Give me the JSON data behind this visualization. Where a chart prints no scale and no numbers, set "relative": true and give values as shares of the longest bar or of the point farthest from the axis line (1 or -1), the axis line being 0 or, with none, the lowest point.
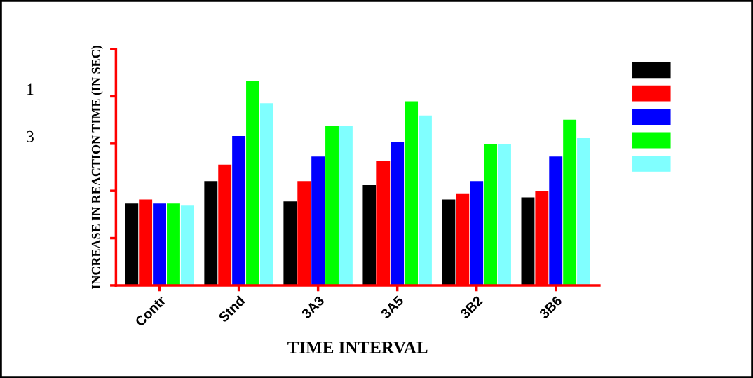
{
  "chart_data": {
    "type": "bar",
    "relative": true,
    "xlabel": "TIME INTERVAL",
    "ylabel": "INCREASE IN REACTION TIME (IN SEC)",
    "categories": [
      "Contr",
      "Stnd",
      "3A3",
      "3A5",
      "3B2",
      "3B6"
    ],
    "series": [
      {
        "color": "#000000",
        "values": [
          0.4,
          0.51,
          0.41,
          0.49,
          0.42,
          0.43
        ]
      },
      {
        "color": "#ff0000",
        "values": [
          0.42,
          0.59,
          0.51,
          0.61,
          0.45,
          0.46
        ]
      },
      {
        "color": "#0000ff",
        "values": [
          0.4,
          0.73,
          0.63,
          0.7,
          0.51,
          0.63
        ]
      },
      {
        "color": "#00ff00",
        "values": [
          0.4,
          1,
          0.78,
          0.9,
          0.69,
          0.81
        ]
      },
      {
        "color": "#80ffff",
        "values": [
          0.39,
          0.89,
          0.78,
          0.83,
          0.69,
          0.72
        ]
      }
    ],
    "annotations": [
      "1",
      "3"
    ],
    "grid": false
  }
}
